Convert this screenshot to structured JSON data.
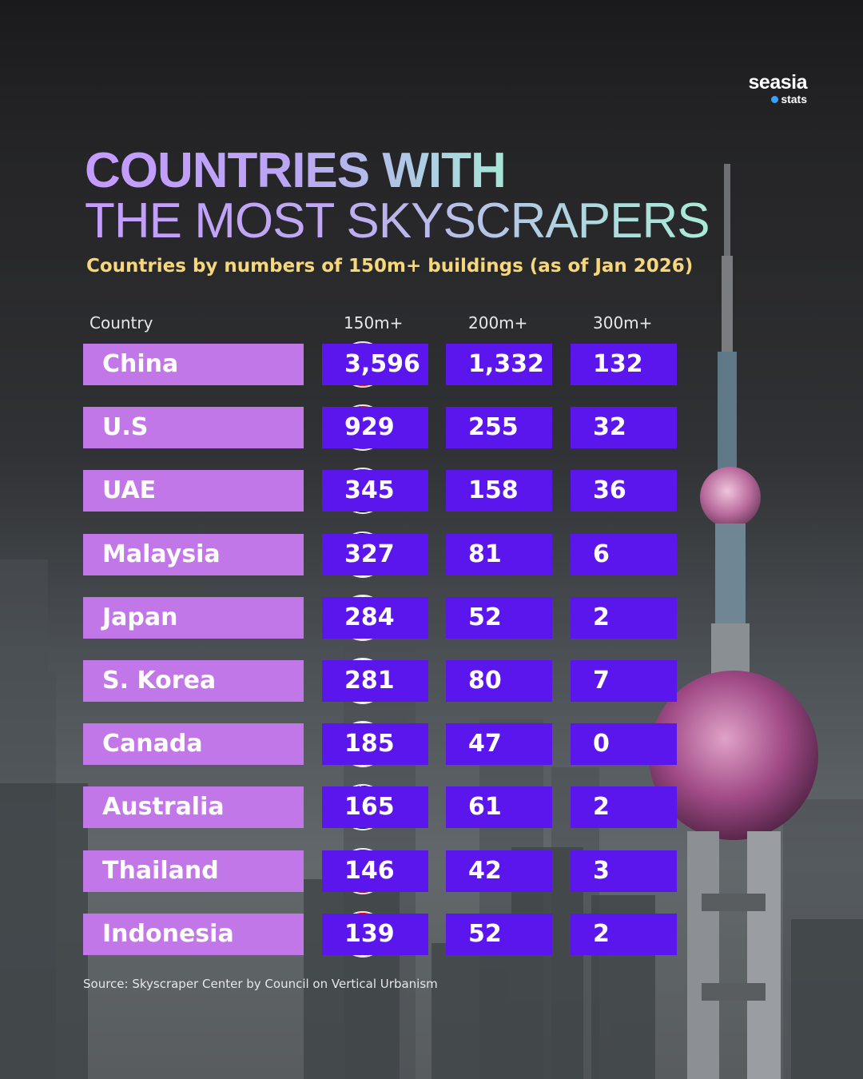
{
  "logo": {
    "main": "seasia",
    "sub": "stats"
  },
  "title_line1": "COUNTRIES WITH",
  "title_line2": "THE MOST SKYSCRAPERS",
  "subtitle": "Countries by numbers of 150m+ buildings (as of Jan 2026)",
  "source": "Source: Skyscraper Center by Council on Vertical Urbanism",
  "colors": {
    "country_bar": "#c277e8",
    "value_cell": "#5b16ee",
    "subtitle": "#f7d77a"
  },
  "chart_data": {
    "type": "table",
    "columns": [
      "Country",
      "150m+",
      "200m+",
      "300m+"
    ],
    "rows": [
      {
        "country": "China",
        "flag": "china-flag-icon",
        "v150": "3,596",
        "v200": "1,332",
        "v300": "132"
      },
      {
        "country": "U.S",
        "flag": "usa-flag-icon",
        "v150": "929",
        "v200": "255",
        "v300": "32"
      },
      {
        "country": "UAE",
        "flag": "uae-flag-icon",
        "v150": "345",
        "v200": "158",
        "v300": "36"
      },
      {
        "country": "Malaysia",
        "flag": "malaysia-flag-icon",
        "v150": "327",
        "v200": "81",
        "v300": "6"
      },
      {
        "country": "Japan",
        "flag": "japan-flag-icon",
        "v150": "284",
        "v200": "52",
        "v300": "2"
      },
      {
        "country": "S. Korea",
        "flag": "south-korea-flag-icon",
        "v150": "281",
        "v200": "80",
        "v300": "7"
      },
      {
        "country": "Canada",
        "flag": "canada-flag-icon",
        "v150": "185",
        "v200": "47",
        "v300": "0"
      },
      {
        "country": "Australia",
        "flag": "australia-flag-icon",
        "v150": "165",
        "v200": "61",
        "v300": "2"
      },
      {
        "country": "Thailand",
        "flag": "thailand-flag-icon",
        "v150": "146",
        "v200": "42",
        "v300": "3"
      },
      {
        "country": "Indonesia",
        "flag": "indonesia-flag-icon",
        "v150": "139",
        "v200": "52",
        "v300": "2"
      }
    ]
  }
}
